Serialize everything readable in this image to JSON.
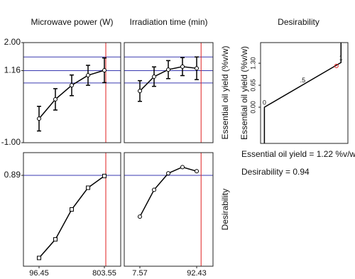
{
  "chart_data": [
    {
      "type": "line",
      "title": "Microwave power (W)",
      "x": [
        96.45,
        273.225,
        450,
        626.775,
        803.55
      ],
      "xlim": [
        -72.6,
        980.3
      ],
      "series": [
        {
          "values": [
            -0.28,
            0.3,
            0.72,
            1.02,
            1.17
          ],
          "errors": [
            0.37,
            0.32,
            0.31,
            0.3,
            0.37
          ],
          "color": "#000000",
          "marker": "circle"
        }
      ],
      "ylim": [
        -1.0,
        2.0
      ],
      "yticks": [
        {
          "value": 2.0,
          "label": "2.00"
        },
        {
          "value": 1.16,
          "label": "1.16"
        },
        {
          "value": -1.0,
          "label": "-1.00"
        }
      ],
      "hlines": [
        1.57,
        1.16,
        0.79
      ],
      "hline_color": "#3a3ab0",
      "vline": 819,
      "vline_color": "#e02020"
    },
    {
      "type": "line",
      "title": "Irradiation time (min)",
      "ylabel": "Essential oil yield (%v/w)",
      "x": [
        7.57,
        28.785,
        50,
        71.215,
        92.43
      ],
      "xlim": [
        -15.77,
        116.8
      ],
      "series": [
        {
          "values": [
            0.55,
            0.98,
            1.19,
            1.28,
            1.23
          ],
          "errors": [
            0.31,
            0.29,
            0.27,
            0.27,
            0.34
          ],
          "color": "#000000",
          "marker": "circle"
        }
      ],
      "ylim": [
        -1.0,
        2.0
      ],
      "hlines": [
        1.57,
        1.16,
        0.79
      ],
      "hline_color": "#3a3ab0",
      "vline": 99,
      "vline_color": "#e02020"
    },
    {
      "type": "line",
      "x": [
        96.45,
        273.225,
        450,
        626.775,
        803.55
      ],
      "xlim": [
        -72.6,
        980.3
      ],
      "xticks": [
        96.45,
        803.55
      ],
      "series": [
        {
          "values": [
            0.49,
            0.58,
            0.725,
            0.83,
            0.887
          ],
          "color": "#000000",
          "marker": "square"
        }
      ],
      "ylim": [
        0.45,
        1.0
      ],
      "yticks": [
        0.89
      ],
      "hlines": [
        0.89
      ],
      "hline_color": "#3a3ab0",
      "vline": 819,
      "vline_color": "#e02020"
    },
    {
      "type": "line",
      "ylabel": "Desirability",
      "x": [
        7.57,
        28.785,
        50,
        71.215,
        92.43
      ],
      "xlim": [
        -15.77,
        116.8
      ],
      "xticks": [
        7.57,
        92.43
      ],
      "series": [
        {
          "values": [
            0.69,
            0.82,
            0.9,
            0.93,
            0.91
          ],
          "color": "#000000",
          "marker": "circle"
        }
      ],
      "ylim": [
        0.45,
        1.0
      ],
      "hlines": [
        0.89
      ],
      "hline_color": "#3a3ab0",
      "vline": 99,
      "vline_color": "#e02020"
    },
    {
      "type": "desirability",
      "title": "Desirability",
      "ylabel": "Essential oil yield (%v/w)",
      "x": [
        0,
        0,
        1,
        1
      ],
      "y": [
        -1.07,
        0.0,
        1.32,
        1.91
      ],
      "color": "#000000",
      "xlim": [
        -0.05,
        1.09
      ],
      "ylim": [
        -1.07,
        1.91
      ],
      "yticks": [
        {
          "value": 0.0,
          "label": "0.00"
        },
        {
          "value": 0.65,
          "label": "0.65"
        },
        {
          "value": 1.3,
          "label": "1.30"
        }
      ],
      "point_labels": [
        {
          "value": 0,
          "label": "0"
        },
        {
          "value": 0.5,
          "label": ".5"
        },
        {
          "value": 1,
          "label": "1"
        }
      ],
      "current": {
        "x": 0.94,
        "y": 1.22,
        "color": "#e02020"
      },
      "annotations": [
        "Essential oil yield = 1.22 %v/w",
        "Desirability = 0.94"
      ]
    }
  ]
}
